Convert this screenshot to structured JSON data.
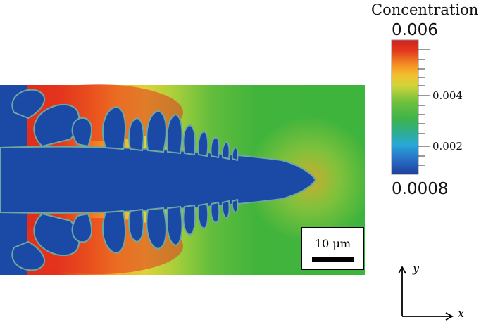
{
  "colorbar": {
    "title": "Concentration",
    "max_label": "0.006",
    "min_label": "0.0008",
    "tick_labels": [
      "0.004",
      "0.002"
    ]
  },
  "scalebar": {
    "label": "10 μm"
  },
  "axes": {
    "x_label": "x",
    "y_label": "y"
  },
  "colors": {
    "solid": "#1a4aa6",
    "liquid_far": "#3db43d",
    "interface_hot": "#e8321e"
  }
}
